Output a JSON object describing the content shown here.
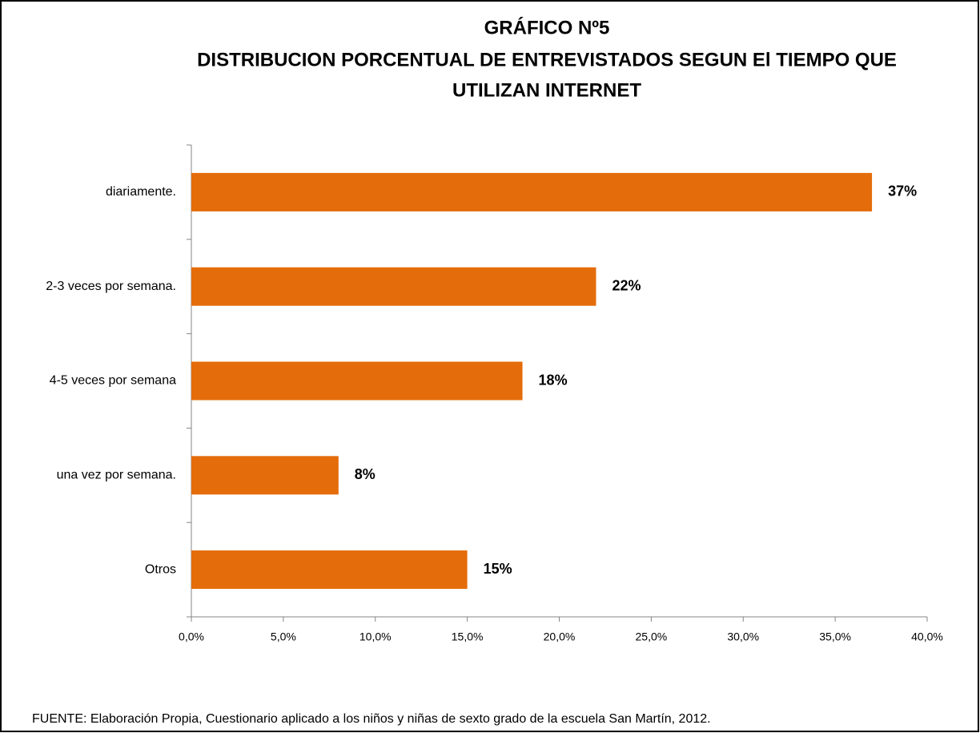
{
  "chart_data": {
    "type": "hbar",
    "title": [
      "GRÁFICO Nº5",
      "DISTRIBUCION PORCENTUAL  DE ENTREVISTADOS SEGUN El TIEMPO QUE",
      "UTILIZAN INTERNET"
    ],
    "categories": [
      "diariamente.",
      "2-3 veces por semana.",
      "4-5 veces por semana",
      "una vez por semana.",
      "Otros"
    ],
    "values": [
      37,
      22,
      18,
      8,
      15
    ],
    "value_labels": [
      "37%",
      "22%",
      "18%",
      "8%",
      "15%"
    ],
    "color": "#e46c0a",
    "xlim": [
      0,
      40
    ],
    "xticks": [
      {
        "value": 0,
        "label": "0,0%"
      },
      {
        "value": 5,
        "label": "5,0%"
      },
      {
        "value": 10,
        "label": "10,0%"
      },
      {
        "value": 15,
        "label": "15,0%"
      },
      {
        "value": 20,
        "label": "20,0%"
      },
      {
        "value": 25,
        "label": "25,0%"
      },
      {
        "value": 30,
        "label": "30,0%"
      },
      {
        "value": 35,
        "label": "35,0%"
      },
      {
        "value": 40,
        "label": "40,0%"
      }
    ],
    "grid": false,
    "source": "FUENTE: Elaboración Propia, Cuestionario aplicado a los niños y niñas de sexto grado de la escuela San Martín, 2012."
  }
}
